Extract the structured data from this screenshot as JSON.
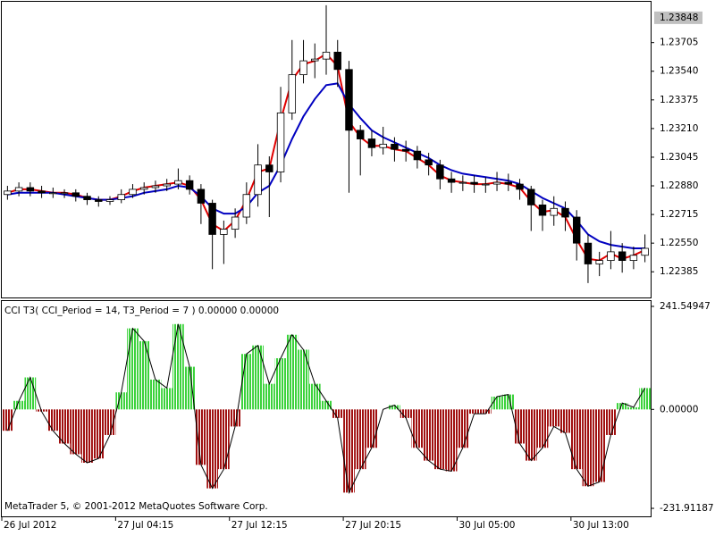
{
  "chart_data": [
    {
      "type": "candlestick",
      "categories": [
        "26 Jul 2012",
        null,
        null,
        null,
        null,
        null,
        null,
        null,
        null,
        null,
        "27 Jul 04:15",
        null,
        null,
        null,
        null,
        null,
        null,
        null,
        null,
        null,
        "27 Jul 12:15",
        null,
        null,
        null,
        null,
        null,
        null,
        null,
        null,
        null,
        "27 Jul 20:15",
        null,
        null,
        null,
        null,
        null,
        null,
        null,
        null,
        null,
        "30 Jul 05:00",
        null,
        null,
        null,
        null,
        null,
        null,
        null,
        null,
        null,
        "30 Jul 13:00",
        null,
        null,
        null,
        null,
        null,
        null
      ],
      "open": [
        1.2283,
        1.2285,
        1.2287,
        1.2285,
        1.2284,
        1.2284,
        1.2284,
        1.2282,
        1.228,
        1.2279,
        1.228,
        1.2283,
        1.2286,
        1.2287,
        1.2288,
        1.2289,
        1.2291,
        1.2286,
        1.2278,
        1.226,
        1.2263,
        1.227,
        1.2283,
        1.23,
        1.2296,
        1.233,
        1.2352,
        1.236,
        1.2361,
        1.2365,
        1.2355,
        1.232,
        1.2315,
        1.231,
        1.2312,
        1.2309,
        1.2308,
        1.2303,
        1.23,
        1.2292,
        1.229,
        1.229,
        1.2289,
        1.2289,
        1.229,
        1.2289,
        1.2286,
        1.2277,
        1.2271,
        1.2275,
        1.227,
        1.2255,
        1.2243,
        1.2245,
        1.225,
        1.2245,
        1.2248
      ],
      "high": [
        1.2288,
        1.229,
        1.229,
        1.2288,
        1.2287,
        1.2286,
        1.2286,
        1.2284,
        1.2282,
        1.2282,
        1.2286,
        1.2289,
        1.229,
        1.2291,
        1.2292,
        1.2298,
        1.2294,
        1.2289,
        1.228,
        1.2268,
        1.2275,
        1.229,
        1.2312,
        1.2305,
        1.2345,
        1.2372,
        1.2372,
        1.237,
        1.2392,
        1.2372,
        1.236,
        1.2323,
        1.232,
        1.2322,
        1.2316,
        1.2314,
        1.2311,
        1.2307,
        1.2303,
        1.2296,
        1.2294,
        1.2294,
        1.2293,
        1.2296,
        1.2295,
        1.2292,
        1.2288,
        1.228,
        1.2282,
        1.2279,
        1.2274,
        1.226,
        1.225,
        1.2262,
        1.2255,
        1.2253,
        1.226
      ],
      "low": [
        1.228,
        1.2282,
        1.2282,
        1.2281,
        1.2281,
        1.2281,
        1.2279,
        1.2277,
        1.2276,
        1.2277,
        1.2278,
        1.2281,
        1.2283,
        1.2284,
        1.2285,
        1.2286,
        1.2283,
        1.2266,
        1.224,
        1.2243,
        1.2258,
        1.2266,
        1.2276,
        1.227,
        1.229,
        1.2326,
        1.2347,
        1.235,
        1.2352,
        1.2345,
        1.2284,
        1.2294,
        1.2305,
        1.2306,
        1.2302,
        1.2302,
        1.2298,
        1.2294,
        1.2286,
        1.2284,
        1.2285,
        1.2284,
        1.2284,
        1.2285,
        1.2285,
        1.228,
        1.2262,
        1.2262,
        1.2265,
        1.2262,
        1.2245,
        1.2232,
        1.2236,
        1.224,
        1.2238,
        1.224,
        1.2244
      ],
      "close": [
        1.2285,
        1.2287,
        1.2285,
        1.2284,
        1.2284,
        1.2284,
        1.2282,
        1.228,
        1.2279,
        1.228,
        1.2283,
        1.2286,
        1.2287,
        1.2288,
        1.2289,
        1.2291,
        1.2286,
        1.2278,
        1.226,
        1.2263,
        1.227,
        1.2283,
        1.23,
        1.2296,
        1.233,
        1.2352,
        1.236,
        1.2361,
        1.2365,
        1.2355,
        1.232,
        1.2315,
        1.231,
        1.2312,
        1.2309,
        1.2308,
        1.2303,
        1.23,
        1.2292,
        1.229,
        1.229,
        1.2289,
        1.2289,
        1.229,
        1.2289,
        1.2286,
        1.2277,
        1.2271,
        1.2275,
        1.227,
        1.2255,
        1.2243,
        1.2245,
        1.225,
        1.2245,
        1.2248,
        1.2252
      ],
      "up_color": "#ffffff",
      "down_color": "#000000",
      "series": [
        {
          "color": "#e00000",
          "values": [
            1.2284,
            1.2286,
            1.2286,
            1.2285,
            1.2284,
            1.2284,
            1.2283,
            1.2281,
            1.228,
            1.228,
            1.2282,
            1.2285,
            1.2287,
            1.2288,
            1.2289,
            1.229,
            1.2288,
            1.228,
            1.2266,
            1.2262,
            1.2268,
            1.228,
            1.2296,
            1.2298,
            1.2326,
            1.2349,
            1.2358,
            1.236,
            1.2364,
            1.2357,
            1.2325,
            1.2316,
            1.2311,
            1.2311,
            1.2309,
            1.2308,
            1.2304,
            1.23,
            1.2294,
            1.2291,
            1.229,
            1.2289,
            1.2289,
            1.229,
            1.2289,
            1.2287,
            1.2279,
            1.2273,
            1.2274,
            1.227,
            1.2257,
            1.2246,
            1.2245,
            1.2249,
            1.2246,
            1.2248,
            1.2251
          ]
        },
        {
          "color": "#0000c0",
          "values": [
            1.2283,
            1.2284,
            1.2284,
            1.2284,
            1.2284,
            1.2283,
            1.2282,
            1.2281,
            1.228,
            1.228,
            1.2281,
            1.2282,
            1.2284,
            1.2285,
            1.2286,
            1.2288,
            1.2287,
            1.2282,
            1.2275,
            1.2272,
            1.2272,
            1.2276,
            1.2284,
            1.2288,
            1.23,
            1.2315,
            1.2328,
            1.2338,
            1.2346,
            1.2347,
            1.2335,
            1.2327,
            1.232,
            1.2316,
            1.2313,
            1.231,
            1.2307,
            1.2304,
            1.23,
            1.2297,
            1.2295,
            1.2294,
            1.2293,
            1.2292,
            1.2291,
            1.2289,
            1.2285,
            1.2281,
            1.2278,
            1.2275,
            1.2268,
            1.226,
            1.2256,
            1.2254,
            1.2253,
            1.2252,
            1.2252
          ]
        }
      ],
      "ylim": [
        1.22237,
        1.2394
      ],
      "yticks": [
        1.22385,
        {
          "value": 1.2255,
          "label": "1.22550"
        },
        1.22715,
        {
          "value": 1.2288,
          "label": "1.22880"
        },
        1.23045,
        {
          "value": 1.2321,
          "label": "1.23210"
        },
        1.23375,
        {
          "value": 1.2354,
          "label": "1.23540"
        },
        1.23705
      ],
      "last_price": 1.23848
    },
    {
      "type": "bar",
      "title": "CCI T3( CCI_Period = 14, T3_Period = 7 ) 0.00000 0.00000",
      "values": [
        -50,
        20,
        75,
        -5,
        -50,
        -80,
        -105,
        -125,
        -115,
        -60,
        40,
        190,
        160,
        70,
        50,
        200,
        100,
        -130,
        -185,
        -140,
        -40,
        130,
        150,
        60,
        120,
        175,
        140,
        60,
        20,
        -20,
        -195,
        -140,
        -90,
        0,
        10,
        -20,
        -90,
        -120,
        -140,
        -145,
        -90,
        -10,
        -10,
        30,
        35,
        -80,
        -120,
        -90,
        -40,
        -55,
        -140,
        -180,
        -170,
        -60,
        15,
        5,
        50
      ],
      "positive_color": "#3cd23c",
      "negative_color": "#a01010",
      "line_color": "#000000",
      "ylim": [
        -250.68,
        254.06
      ],
      "yticks": [
        241.54947,
        {
          "value": 0,
          "label": "0.00000"
        },
        -231.91187
      ],
      "annotation": "MetaTrader 5, © 2001-2012 MetaQuotes Software Corp."
    }
  ]
}
